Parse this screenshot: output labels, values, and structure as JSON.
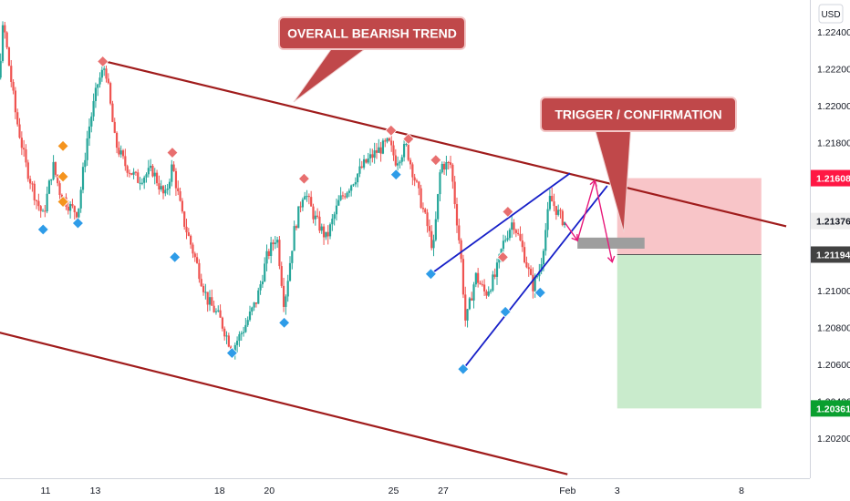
{
  "chart_data": {
    "type": "candlestick",
    "title": "",
    "currency": "USD",
    "x_ticks": [
      {
        "label": "11",
        "day": 11
      },
      {
        "label": "13",
        "day": 13
      },
      {
        "label": "18",
        "day": 18
      },
      {
        "label": "20",
        "day": 20
      },
      {
        "label": "25",
        "day": 25
      },
      {
        "label": "27",
        "day": 27
      },
      {
        "label": "Feb",
        "day": 32
      },
      {
        "label": "3",
        "day": 34
      },
      {
        "label": "8",
        "day": 39
      }
    ],
    "y_ticks": [
      "1.22400",
      "1.22200",
      "1.22000",
      "1.21800",
      "1.21400",
      "1.21000",
      "1.20800",
      "1.20600",
      "1.20400",
      "1.20200"
    ],
    "ylim": [
      1.2004,
      1.2253
    ],
    "price_badges": [
      {
        "label": "1.21608",
        "value": 1.21608,
        "color": "#ff1744"
      },
      {
        "label": "1.21376",
        "value": 1.21376,
        "color": "#eeeeee"
      },
      {
        "label": "1.21194",
        "value": 1.21194,
        "color": "#424242"
      },
      {
        "label": "1.20361",
        "value": 1.20361,
        "color": "#0a9f2f"
      }
    ],
    "trade_zones": {
      "stop_zone": {
        "from": 1.21194,
        "to": 1.21608,
        "day_from": 34,
        "day_to": 39.8,
        "color": "#f8c5c8"
      },
      "target_zone": {
        "from": 1.20361,
        "to": 1.21194,
        "day_from": 34,
        "day_to": 39.8,
        "color": "#c9ebcc"
      },
      "entry_box": {
        "from": 1.21226,
        "to": 1.21286,
        "day_from": 32.4,
        "day_to": 35.1,
        "color": "#9e9e9e"
      }
    },
    "trend_lines": [
      {
        "name": "upper-channel",
        "color": "#a01c1c",
        "points": [
          [
            13.4,
            1.2224
          ],
          [
            40.8,
            1.21347
          ]
        ]
      },
      {
        "name": "lower-channel",
        "color": "#a01c1c",
        "points": [
          [
            8.0,
            1.2081
          ],
          [
            32.0,
            1.20004
          ]
        ]
      },
      {
        "name": "wedge-upper",
        "color": "#1720c8",
        "points": [
          [
            26.5,
            1.21089
          ],
          [
            32.1,
            1.21634
          ]
        ]
      },
      {
        "name": "wedge-lower",
        "color": "#1720c8",
        "points": [
          [
            27.8,
            1.20574
          ],
          [
            33.6,
            1.21566
          ]
        ]
      }
    ],
    "projection_path": {
      "color": "#e8197a",
      "points": [
        [
          31.9,
          1.21366
        ],
        [
          32.4,
          1.2127
        ],
        [
          33.1,
          1.21596
        ],
        [
          33.8,
          1.21154
        ]
      ]
    },
    "markers": [
      {
        "kind": "swing-low",
        "color": "#2e9ce8",
        "day": 8.8,
        "value": 1.21452
      },
      {
        "kind": "swing-low",
        "color": "#2e9ce8",
        "day": 10.9,
        "value": 1.2133
      },
      {
        "kind": "swing-low",
        "color": "#2e9ce8",
        "day": 12.3,
        "value": 1.21364
      },
      {
        "kind": "swing-low",
        "color": "#2e9ce8",
        "day": 16.2,
        "value": 1.2118
      },
      {
        "kind": "swing-low",
        "color": "#2e9ce8",
        "day": 18.5,
        "value": 1.20661
      },
      {
        "kind": "swing-low",
        "color": "#2e9ce8",
        "day": 20.6,
        "value": 1.20825
      },
      {
        "kind": "swing-low",
        "color": "#2e9ce8",
        "day": 25.1,
        "value": 1.21627
      },
      {
        "kind": "swing-low",
        "color": "#2e9ce8",
        "day": 26.5,
        "value": 1.21089
      },
      {
        "kind": "swing-low",
        "color": "#2e9ce8",
        "day": 27.8,
        "value": 1.20574
      },
      {
        "kind": "swing-low",
        "color": "#2e9ce8",
        "day": 29.5,
        "value": 1.20884
      },
      {
        "kind": "swing-low",
        "color": "#2e9ce8",
        "day": 30.9,
        "value": 1.20988
      },
      {
        "kind": "swing-high",
        "color": "#e86f6f",
        "day": 13.3,
        "value": 1.2224
      },
      {
        "kind": "swing-high",
        "color": "#e86f6f",
        "day": 16.1,
        "value": 1.21746
      },
      {
        "kind": "swing-high",
        "color": "#e86f6f",
        "day": 21.4,
        "value": 1.21605
      },
      {
        "kind": "swing-high",
        "color": "#e86f6f",
        "day": 24.9,
        "value": 1.21866
      },
      {
        "kind": "swing-high",
        "color": "#e86f6f",
        "day": 25.6,
        "value": 1.2182
      },
      {
        "kind": "swing-high",
        "color": "#e86f6f",
        "day": 26.7,
        "value": 1.21706
      },
      {
        "kind": "swing-high",
        "color": "#e86f6f",
        "day": 29.6,
        "value": 1.21426
      },
      {
        "kind": "swing-high",
        "color": "#e86f6f",
        "day": 29.4,
        "value": 1.2118
      },
      {
        "kind": "fractal",
        "color": "#f5941e",
        "day": 11.7,
        "value": 1.21782
      },
      {
        "kind": "fractal",
        "color": "#f5941e",
        "day": 11.7,
        "value": 1.21616
      },
      {
        "kind": "fractal",
        "color": "#f5941e",
        "day": 11.7,
        "value": 1.2148
      }
    ],
    "callouts": [
      {
        "text": "OVERALL BEARISH TREND",
        "color": "#c0484a"
      },
      {
        "text": "TRIGGER / CONFIRMATION",
        "color": "#c0484a"
      }
    ],
    "candle_colors": {
      "up": "#26a69a",
      "down": "#ef5350"
    }
  }
}
